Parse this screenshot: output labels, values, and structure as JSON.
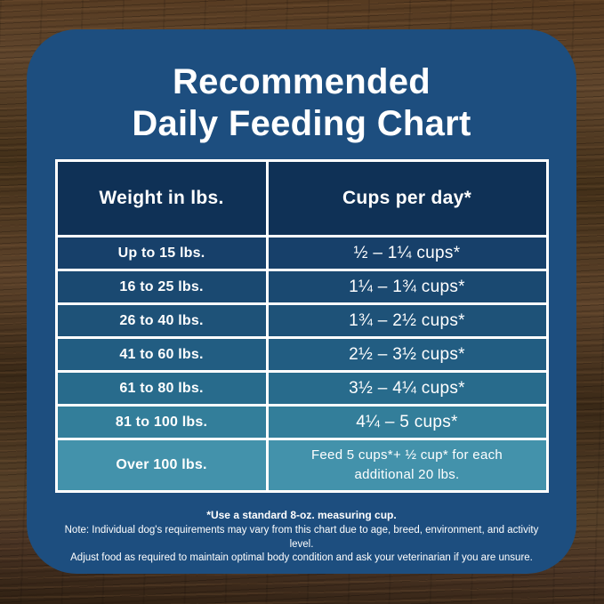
{
  "title": {
    "line1": "Recommended",
    "line2": "Daily Feeding Chart"
  },
  "colors": {
    "card_background": "#1d4e7f",
    "table_border": "#ffffff",
    "header_background": "#0f3156",
    "text": "#ffffff"
  },
  "table": {
    "headers": {
      "weight": "Weight in lbs.",
      "cups": "Cups per day*"
    },
    "row_colors": [
      "#17406a",
      "#1a4971",
      "#1e5278",
      "#225d82",
      "#286b8c",
      "#337e9a",
      "#4392ab"
    ],
    "rows": [
      {
        "weight": "Up to 15 lbs.",
        "cups": "½ – 1¼ cups*"
      },
      {
        "weight": "16 to 25 lbs.",
        "cups": "1¼ – 1¾  cups*"
      },
      {
        "weight": "26 to 40 lbs.",
        "cups": "1¾ – 2½ cups*"
      },
      {
        "weight": "41 to 60 lbs.",
        "cups": "2½ – 3½ cups*"
      },
      {
        "weight": "61 to 80 lbs.",
        "cups": "3½ – 4¼ cups*"
      },
      {
        "weight": "81 to 100 lbs.",
        "cups": "4¼ – 5 cups*"
      },
      {
        "weight": "Over 100 lbs.",
        "cups": "Feed 5 cups*+ ½ cup* for each additional 20 lbs."
      }
    ]
  },
  "footer": {
    "measuring_cup_note": "*Use a standard 8-oz. measuring cup.",
    "note_line1": "Note: Individual dog's requirements may vary from this chart due to age, breed, environment, and activity level.",
    "note_line2": "Adjust food as required to maintain optimal body condition and ask your veterinarian if you are unsure."
  },
  "chart_data": {
    "type": "table",
    "title": "Recommended Daily Feeding Chart",
    "columns": [
      "Weight in lbs.",
      "Cups per day*"
    ],
    "rows": [
      [
        "Up to 15 lbs.",
        "½ – 1¼ cups*"
      ],
      [
        "16 to 25 lbs.",
        "1¼ – 1¾ cups*"
      ],
      [
        "26 to 40 lbs.",
        "1¾ – 2½ cups*"
      ],
      [
        "41 to 60 lbs.",
        "2½ – 3½ cups*"
      ],
      [
        "61 to 80 lbs.",
        "3½ – 4¼ cups*"
      ],
      [
        "81 to 100 lbs.",
        "4¼ – 5 cups*"
      ],
      [
        "Over 100 lbs.",
        "Feed 5 cups*+ ½ cup* for each additional 20 lbs."
      ]
    ],
    "footnotes": [
      "*Use a standard 8-oz. measuring cup.",
      "Note: Individual dog's requirements may vary from this chart due to age, breed, environment, and activity level.",
      "Adjust food as required to maintain optimal body condition and ask your veterinarian if you are unsure."
    ]
  }
}
